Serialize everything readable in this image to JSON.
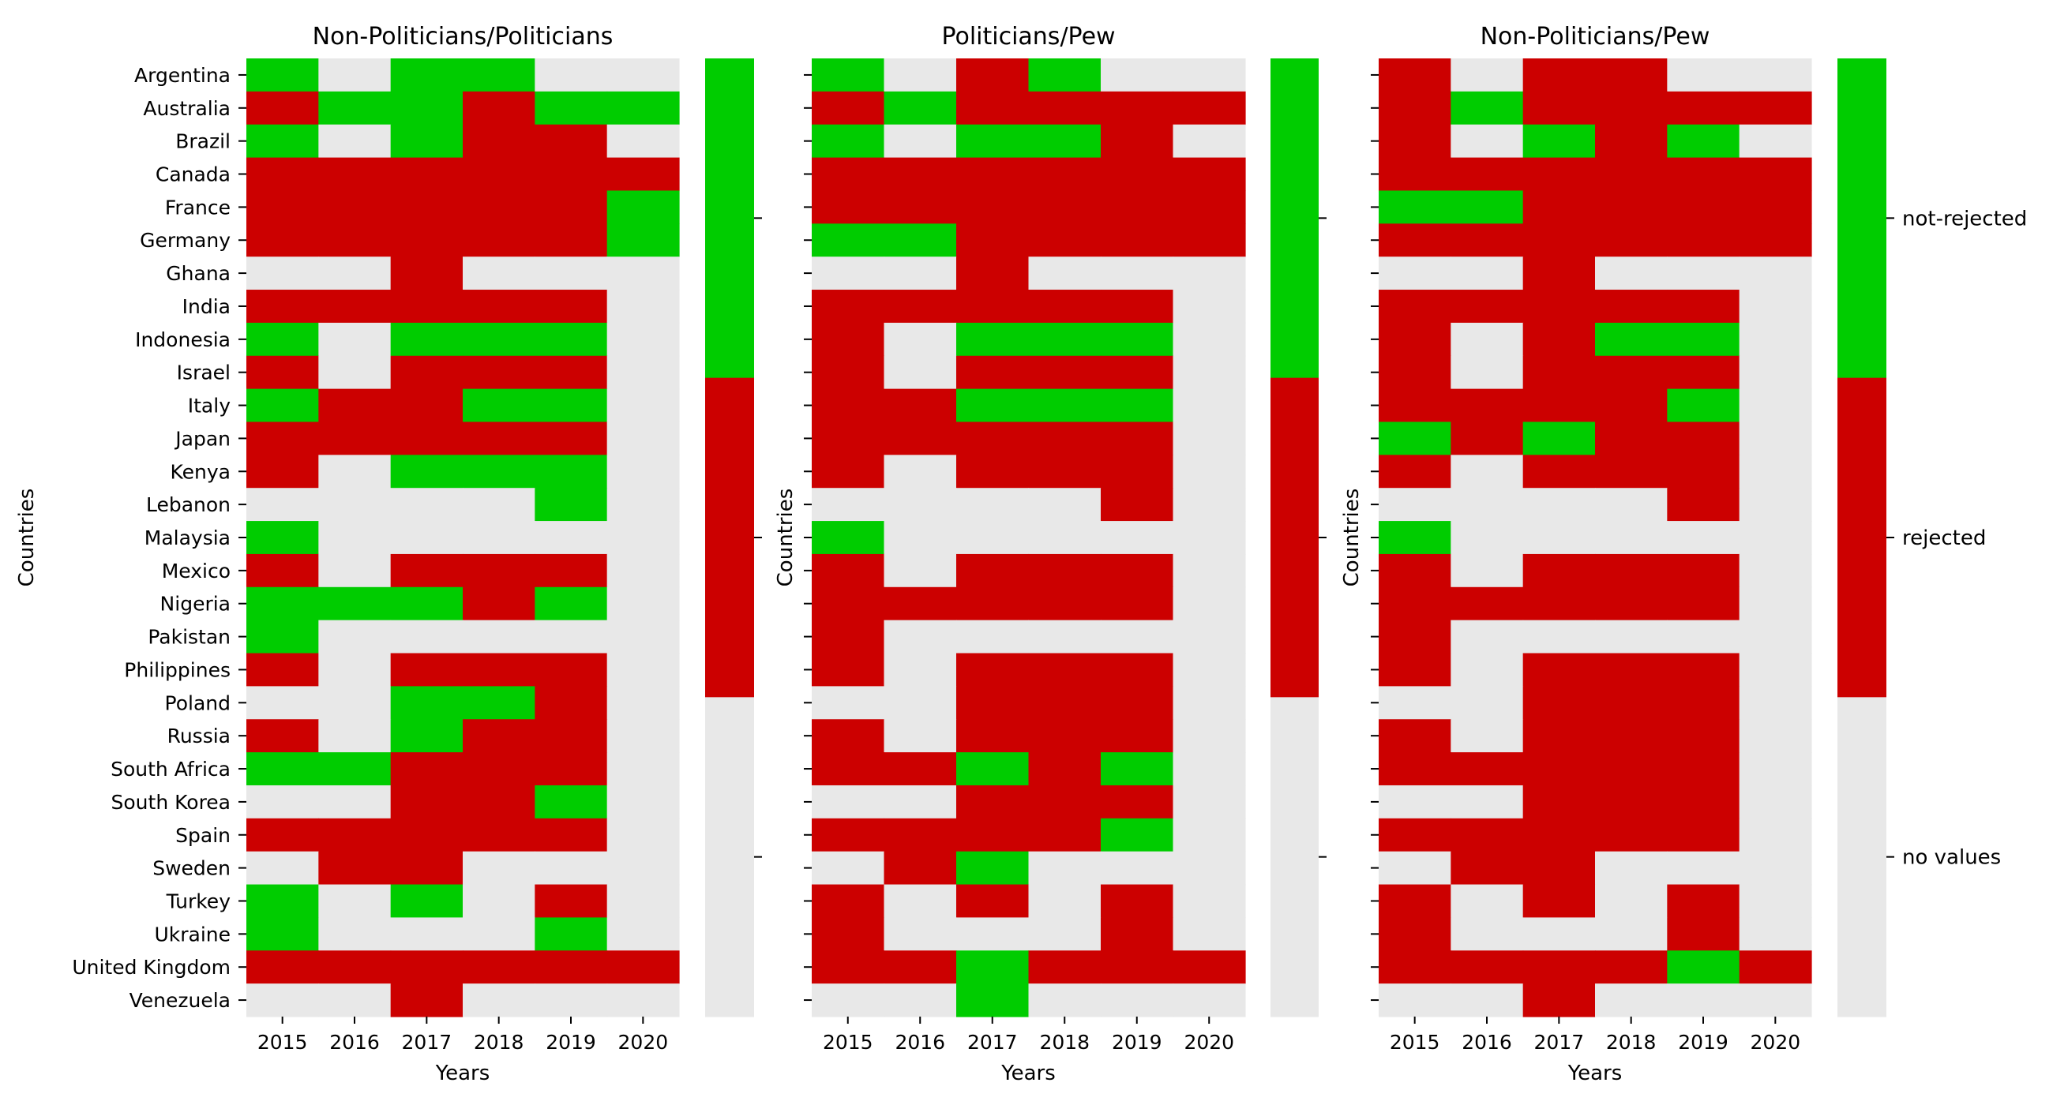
{
  "colors": {
    "not_rejected": "#00cc00",
    "rejected": "#cc0000",
    "no_values": "#e8e8e8"
  },
  "chart_data": [
    {
      "type": "heatmap",
      "title": "Non-Politicians/Politicians",
      "xlabel": "Years",
      "ylabel": "Countries",
      "x": [
        "2015",
        "2016",
        "2017",
        "2018",
        "2019",
        "2020"
      ],
      "y": [
        "Argentina",
        "Australia",
        "Brazil",
        "Canada",
        "France",
        "Germany",
        "Ghana",
        "India",
        "Indonesia",
        "Israel",
        "Italy",
        "Japan",
        "Kenya",
        "Lebanon",
        "Malaysia",
        "Mexico",
        "Nigeria",
        "Pakistan",
        "Philippines",
        "Poland",
        "Russia",
        "South Africa",
        "South Korea",
        "Spain",
        "Sweden",
        "Turkey",
        "Ukraine",
        "United Kingdom",
        "Venezuela"
      ],
      "value_key": {
        "0": "no values",
        "1": "rejected",
        "2": "not-rejected"
      },
      "values": [
        [
          2,
          0,
          2,
          2,
          0,
          0
        ],
        [
          1,
          2,
          2,
          1,
          2,
          2
        ],
        [
          2,
          0,
          2,
          1,
          1,
          0
        ],
        [
          1,
          1,
          1,
          1,
          1,
          1
        ],
        [
          1,
          1,
          1,
          1,
          1,
          2
        ],
        [
          1,
          1,
          1,
          1,
          1,
          2
        ],
        [
          0,
          0,
          1,
          0,
          0,
          0
        ],
        [
          1,
          1,
          1,
          1,
          1,
          0
        ],
        [
          2,
          0,
          2,
          2,
          2,
          0
        ],
        [
          1,
          0,
          1,
          1,
          1,
          0
        ],
        [
          2,
          1,
          1,
          2,
          2,
          0
        ],
        [
          1,
          1,
          1,
          1,
          1,
          0
        ],
        [
          1,
          0,
          2,
          2,
          2,
          0
        ],
        [
          0,
          0,
          0,
          0,
          2,
          0
        ],
        [
          2,
          0,
          0,
          0,
          0,
          0
        ],
        [
          1,
          0,
          1,
          1,
          1,
          0
        ],
        [
          2,
          2,
          2,
          1,
          2,
          0
        ],
        [
          2,
          0,
          0,
          0,
          0,
          0
        ],
        [
          1,
          0,
          1,
          1,
          1,
          0
        ],
        [
          0,
          0,
          2,
          2,
          1,
          0
        ],
        [
          1,
          0,
          2,
          1,
          1,
          0
        ],
        [
          2,
          2,
          1,
          1,
          1,
          0
        ],
        [
          0,
          0,
          1,
          1,
          2,
          0
        ],
        [
          1,
          1,
          1,
          1,
          1,
          0
        ],
        [
          0,
          1,
          1,
          0,
          0,
          0
        ],
        [
          2,
          0,
          2,
          0,
          1,
          0
        ],
        [
          2,
          0,
          0,
          0,
          2,
          0
        ],
        [
          1,
          1,
          1,
          1,
          1,
          1
        ],
        [
          0,
          0,
          1,
          0,
          0,
          0
        ]
      ],
      "colorbar": [
        "not-rejected",
        "rejected",
        "no values"
      ]
    },
    {
      "type": "heatmap",
      "title": "Politicians/Pew",
      "xlabel": "Years",
      "ylabel": "Countries",
      "x": [
        "2015",
        "2016",
        "2017",
        "2018",
        "2019",
        "2020"
      ],
      "y": [
        "Argentina",
        "Australia",
        "Brazil",
        "Canada",
        "France",
        "Germany",
        "Ghana",
        "India",
        "Indonesia",
        "Israel",
        "Italy",
        "Japan",
        "Kenya",
        "Lebanon",
        "Malaysia",
        "Mexico",
        "Nigeria",
        "Pakistan",
        "Philippines",
        "Poland",
        "Russia",
        "South Africa",
        "South Korea",
        "Spain",
        "Sweden",
        "Turkey",
        "Ukraine",
        "United Kingdom",
        "Venezuela"
      ],
      "value_key": {
        "0": "no values",
        "1": "rejected",
        "2": "not-rejected"
      },
      "values": [
        [
          2,
          0,
          1,
          2,
          0,
          0
        ],
        [
          1,
          2,
          1,
          1,
          1,
          1
        ],
        [
          2,
          0,
          2,
          2,
          1,
          0
        ],
        [
          1,
          1,
          1,
          1,
          1,
          1
        ],
        [
          1,
          1,
          1,
          1,
          1,
          1
        ],
        [
          2,
          2,
          1,
          1,
          1,
          1
        ],
        [
          0,
          0,
          1,
          0,
          0,
          0
        ],
        [
          1,
          1,
          1,
          1,
          1,
          0
        ],
        [
          1,
          0,
          2,
          2,
          2,
          0
        ],
        [
          1,
          0,
          1,
          1,
          1,
          0
        ],
        [
          1,
          1,
          2,
          2,
          2,
          0
        ],
        [
          1,
          1,
          1,
          1,
          1,
          0
        ],
        [
          1,
          0,
          1,
          1,
          1,
          0
        ],
        [
          0,
          0,
          0,
          0,
          1,
          0
        ],
        [
          2,
          0,
          0,
          0,
          0,
          0
        ],
        [
          1,
          0,
          1,
          1,
          1,
          0
        ],
        [
          1,
          1,
          1,
          1,
          1,
          0
        ],
        [
          1,
          0,
          0,
          0,
          0,
          0
        ],
        [
          1,
          0,
          1,
          1,
          1,
          0
        ],
        [
          0,
          0,
          1,
          1,
          1,
          0
        ],
        [
          1,
          0,
          1,
          1,
          1,
          0
        ],
        [
          1,
          1,
          2,
          1,
          2,
          0
        ],
        [
          0,
          0,
          1,
          1,
          1,
          0
        ],
        [
          1,
          1,
          1,
          1,
          2,
          0
        ],
        [
          0,
          1,
          2,
          0,
          0,
          0
        ],
        [
          1,
          0,
          1,
          0,
          1,
          0
        ],
        [
          1,
          0,
          0,
          0,
          1,
          0
        ],
        [
          1,
          1,
          2,
          1,
          1,
          1
        ],
        [
          0,
          0,
          2,
          0,
          0,
          0
        ]
      ],
      "colorbar": [
        "not-rejected",
        "rejected",
        "no values"
      ]
    },
    {
      "type": "heatmap",
      "title": "Non-Politicians/Pew",
      "xlabel": "Years",
      "ylabel": "Countries",
      "x": [
        "2015",
        "2016",
        "2017",
        "2018",
        "2019",
        "2020"
      ],
      "y": [
        "Argentina",
        "Australia",
        "Brazil",
        "Canada",
        "France",
        "Germany",
        "Ghana",
        "India",
        "Indonesia",
        "Israel",
        "Italy",
        "Japan",
        "Kenya",
        "Lebanon",
        "Malaysia",
        "Mexico",
        "Nigeria",
        "Pakistan",
        "Philippines",
        "Poland",
        "Russia",
        "South Africa",
        "South Korea",
        "Spain",
        "Sweden",
        "Turkey",
        "Ukraine",
        "United Kingdom",
        "Venezuela"
      ],
      "value_key": {
        "0": "no values",
        "1": "rejected",
        "2": "not-rejected"
      },
      "values": [
        [
          1,
          0,
          1,
          1,
          0,
          0
        ],
        [
          1,
          2,
          1,
          1,
          1,
          1
        ],
        [
          1,
          0,
          2,
          1,
          2,
          0
        ],
        [
          1,
          1,
          1,
          1,
          1,
          1
        ],
        [
          2,
          2,
          1,
          1,
          1,
          1
        ],
        [
          1,
          1,
          1,
          1,
          1,
          1
        ],
        [
          0,
          0,
          1,
          0,
          0,
          0
        ],
        [
          1,
          1,
          1,
          1,
          1,
          0
        ],
        [
          1,
          0,
          1,
          2,
          2,
          0
        ],
        [
          1,
          0,
          1,
          1,
          1,
          0
        ],
        [
          1,
          1,
          1,
          1,
          2,
          0
        ],
        [
          2,
          1,
          2,
          1,
          1,
          0
        ],
        [
          1,
          0,
          1,
          1,
          1,
          0
        ],
        [
          0,
          0,
          0,
          0,
          1,
          0
        ],
        [
          2,
          0,
          0,
          0,
          0,
          0
        ],
        [
          1,
          0,
          1,
          1,
          1,
          0
        ],
        [
          1,
          1,
          1,
          1,
          1,
          0
        ],
        [
          1,
          0,
          0,
          0,
          0,
          0
        ],
        [
          1,
          0,
          1,
          1,
          1,
          0
        ],
        [
          0,
          0,
          1,
          1,
          1,
          0
        ],
        [
          1,
          0,
          1,
          1,
          1,
          0
        ],
        [
          1,
          1,
          1,
          1,
          1,
          0
        ],
        [
          0,
          0,
          1,
          1,
          1,
          0
        ],
        [
          1,
          1,
          1,
          1,
          1,
          0
        ],
        [
          0,
          1,
          1,
          0,
          0,
          0
        ],
        [
          1,
          0,
          1,
          0,
          1,
          0
        ],
        [
          1,
          0,
          0,
          0,
          1,
          0
        ],
        [
          1,
          1,
          1,
          1,
          2,
          1
        ],
        [
          0,
          0,
          1,
          0,
          0,
          0
        ]
      ],
      "colorbar": [
        "not-rejected",
        "rejected",
        "no values"
      ]
    }
  ]
}
